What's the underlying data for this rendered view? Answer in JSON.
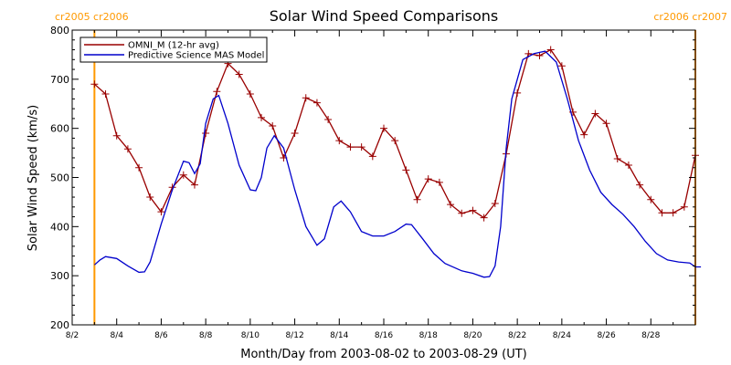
{
  "chart_data": {
    "type": "line",
    "title": "Solar Wind Speed Comparisons",
    "xlabel": "Month/Day from 2003-08-02 to 2003-08-29 (UT)",
    "ylabel": "Solar Wind Speed (km/s)",
    "ylim": [
      200,
      800
    ],
    "xlim": [
      "2003-08-02",
      "2003-08-30"
    ],
    "y_ticks": [
      200,
      300,
      400,
      500,
      600,
      700,
      800
    ],
    "x_ticks": [
      "2003-08-02",
      "2003-08-04",
      "2003-08-06",
      "2003-08-08",
      "2003-08-10",
      "2003-08-12",
      "2003-08-14",
      "2003-08-16",
      "2003-08-18",
      "2003-08-20",
      "2003-08-22",
      "2003-08-24",
      "2003-08-26",
      "2003-08-28"
    ],
    "x_tick_labels": [
      "8/2",
      "8/4",
      "8/6",
      "8/8",
      "8/10",
      "8/12",
      "8/14",
      "8/16",
      "8/18",
      "8/20",
      "8/22",
      "8/24",
      "8/26",
      "8/28"
    ],
    "legend_placement": "top-left",
    "grid": false,
    "colors": {
      "omni": "#990000",
      "model": "#0000cc",
      "cr_marker": "#ff9900",
      "axis": "#000000"
    },
    "carrington_markers": [
      {
        "date": "2003-08-03 00:00",
        "labels": [
          "cr2005",
          "cr2006"
        ],
        "label_side": "left"
      },
      {
        "date": "2003-08-30 00:00",
        "labels": [
          "cr2006",
          "cr2007"
        ],
        "label_side": "right"
      }
    ],
    "series": [
      {
        "name": "OMNI_M (12-hr avg)",
        "style": "line-with-plus-markers",
        "points": [
          [
            "2003-08-03 00:00",
            690
          ],
          [
            "2003-08-03 12:00",
            670
          ],
          [
            "2003-08-04 00:00",
            585
          ],
          [
            "2003-08-04 12:00",
            558
          ],
          [
            "2003-08-05 00:00",
            520
          ],
          [
            "2003-08-05 12:00",
            460
          ],
          [
            "2003-08-06 00:00",
            430
          ],
          [
            "2003-08-06 12:00",
            480
          ],
          [
            "2003-08-07 00:00",
            505
          ],
          [
            "2003-08-07 12:00",
            485
          ],
          [
            "2003-08-08 00:00",
            590
          ],
          [
            "2003-08-08 12:00",
            675
          ],
          [
            "2003-08-09 00:00",
            732
          ],
          [
            "2003-08-09 12:00",
            710
          ],
          [
            "2003-08-10 00:00",
            670
          ],
          [
            "2003-08-10 12:00",
            622
          ],
          [
            "2003-08-11 00:00",
            605
          ],
          [
            "2003-08-11 12:00",
            540
          ],
          [
            "2003-08-12 00:00",
            590
          ],
          [
            "2003-08-12 12:00",
            662
          ],
          [
            "2003-08-13 00:00",
            652
          ],
          [
            "2003-08-13 12:00",
            618
          ],
          [
            "2003-08-14 00:00",
            575
          ],
          [
            "2003-08-14 12:00",
            562
          ],
          [
            "2003-08-15 00:00",
            562
          ],
          [
            "2003-08-15 12:00",
            543
          ],
          [
            "2003-08-16 00:00",
            600
          ],
          [
            "2003-08-16 12:00",
            575
          ],
          [
            "2003-08-17 00:00",
            515
          ],
          [
            "2003-08-17 12:00",
            455
          ],
          [
            "2003-08-18 00:00",
            497
          ],
          [
            "2003-08-18 12:00",
            490
          ],
          [
            "2003-08-19 00:00",
            445
          ],
          [
            "2003-08-19 12:00",
            427
          ],
          [
            "2003-08-20 00:00",
            433
          ],
          [
            "2003-08-20 12:00",
            418
          ],
          [
            "2003-08-21 00:00",
            447
          ],
          [
            "2003-08-21 12:00",
            548
          ],
          [
            "2003-08-22 00:00",
            672
          ],
          [
            "2003-08-22 12:00",
            752
          ],
          [
            "2003-08-23 00:00",
            748
          ],
          [
            "2003-08-23 12:00",
            760
          ],
          [
            "2003-08-24 00:00",
            727
          ],
          [
            "2003-08-24 12:00",
            633
          ],
          [
            "2003-08-25 00:00",
            587
          ],
          [
            "2003-08-25 12:00",
            630
          ],
          [
            "2003-08-26 00:00",
            610
          ],
          [
            "2003-08-26 12:00",
            538
          ],
          [
            "2003-08-27 00:00",
            525
          ],
          [
            "2003-08-27 12:00",
            485
          ],
          [
            "2003-08-28 00:00",
            455
          ],
          [
            "2003-08-28 12:00",
            428
          ],
          [
            "2003-08-29 00:00",
            428
          ],
          [
            "2003-08-29 12:00",
            440
          ],
          [
            "2003-08-30 00:00",
            545
          ]
        ]
      },
      {
        "name": "Predictive Science MAS Model",
        "style": "line",
        "points": [
          [
            "2003-08-03 00:00",
            322
          ],
          [
            "2003-08-03 06:00",
            332
          ],
          [
            "2003-08-03 12:00",
            339
          ],
          [
            "2003-08-04 00:00",
            335
          ],
          [
            "2003-08-04 12:00",
            320
          ],
          [
            "2003-08-05 00:00",
            307
          ],
          [
            "2003-08-05 06:00",
            308
          ],
          [
            "2003-08-05 12:00",
            328
          ],
          [
            "2003-08-06 00:00",
            405
          ],
          [
            "2003-08-06 12:00",
            475
          ],
          [
            "2003-08-07 00:00",
            533
          ],
          [
            "2003-08-07 06:00",
            530
          ],
          [
            "2003-08-07 12:00",
            508
          ],
          [
            "2003-08-07 18:00",
            528
          ],
          [
            "2003-08-08 00:00",
            610
          ],
          [
            "2003-08-08 08:00",
            660
          ],
          [
            "2003-08-08 14:00",
            667
          ],
          [
            "2003-08-09 00:00",
            610
          ],
          [
            "2003-08-09 12:00",
            525
          ],
          [
            "2003-08-10 00:00",
            475
          ],
          [
            "2003-08-10 06:00",
            473
          ],
          [
            "2003-08-10 12:00",
            500
          ],
          [
            "2003-08-10 18:00",
            560
          ],
          [
            "2003-08-11 02:00",
            585
          ],
          [
            "2003-08-11 12:00",
            560
          ],
          [
            "2003-08-12 00:00",
            475
          ],
          [
            "2003-08-12 12:00",
            400
          ],
          [
            "2003-08-13 00:00",
            362
          ],
          [
            "2003-08-13 08:00",
            375
          ],
          [
            "2003-08-13 18:00",
            440
          ],
          [
            "2003-08-14 02:00",
            452
          ],
          [
            "2003-08-14 12:00",
            430
          ],
          [
            "2003-08-15 00:00",
            390
          ],
          [
            "2003-08-15 12:00",
            381
          ],
          [
            "2003-08-16 00:00",
            381
          ],
          [
            "2003-08-16 12:00",
            390
          ],
          [
            "2003-08-17 00:00",
            405
          ],
          [
            "2003-08-17 06:00",
            404
          ],
          [
            "2003-08-17 18:00",
            375
          ],
          [
            "2003-08-18 06:00",
            345
          ],
          [
            "2003-08-18 18:00",
            325
          ],
          [
            "2003-08-19 12:00",
            310
          ],
          [
            "2003-08-20 00:00",
            305
          ],
          [
            "2003-08-20 12:00",
            297
          ],
          [
            "2003-08-20 18:00",
            298
          ],
          [
            "2003-08-21 00:00",
            320
          ],
          [
            "2003-08-21 06:00",
            400
          ],
          [
            "2003-08-21 12:00",
            560
          ],
          [
            "2003-08-21 18:00",
            660
          ],
          [
            "2003-08-22 06:00",
            740
          ],
          [
            "2003-08-22 18:00",
            752
          ],
          [
            "2003-08-23 06:00",
            757
          ],
          [
            "2003-08-23 18:00",
            735
          ],
          [
            "2003-08-24 06:00",
            660
          ],
          [
            "2003-08-24 18:00",
            575
          ],
          [
            "2003-08-25 06:00",
            515
          ],
          [
            "2003-08-25 18:00",
            470
          ],
          [
            "2003-08-26 06:00",
            445
          ],
          [
            "2003-08-26 18:00",
            425
          ],
          [
            "2003-08-27 06:00",
            400
          ],
          [
            "2003-08-27 18:00",
            370
          ],
          [
            "2003-08-28 06:00",
            345
          ],
          [
            "2003-08-28 18:00",
            332
          ],
          [
            "2003-08-29 06:00",
            328
          ],
          [
            "2003-08-29 18:00",
            326
          ],
          [
            "2003-08-30 00:00",
            318
          ],
          [
            "2003-08-30 06:00",
            318
          ]
        ]
      }
    ]
  }
}
